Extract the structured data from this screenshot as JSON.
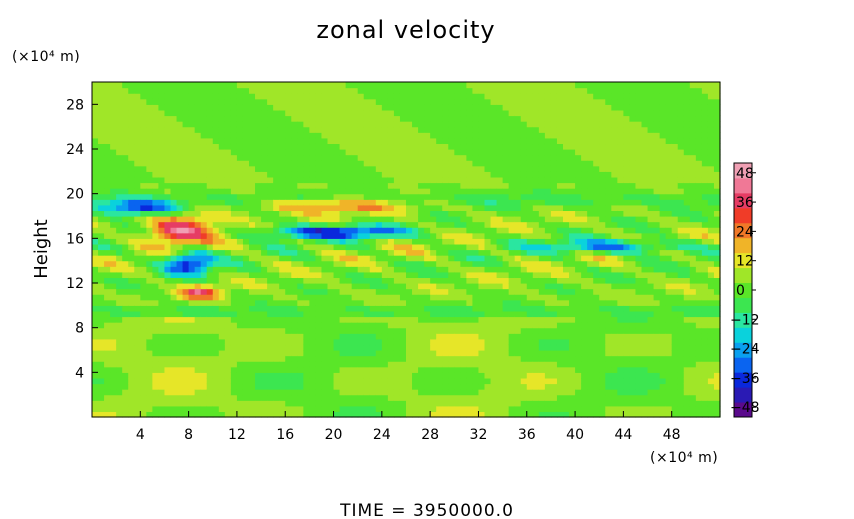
{
  "chart_data": {
    "type": "heatmap",
    "title": "zonal velocity",
    "ylabel": "Height",
    "xunit": "(×10⁴ m)",
    "yunit": "(×10⁴ m)",
    "xticks": [
      4,
      8,
      12,
      16,
      20,
      24,
      28,
      32,
      36,
      40,
      44,
      48
    ],
    "yticks": [
      4,
      8,
      12,
      16,
      20,
      24,
      28
    ],
    "xlim": [
      0,
      52
    ],
    "ylim": [
      0,
      30
    ],
    "colorbar": {
      "ticks": [
        48,
        36,
        24,
        12,
        0,
        -12,
        -24,
        -36,
        -48
      ],
      "range": [
        -52,
        52
      ]
    },
    "footer": "TIME  =  3950000.0",
    "colorscale": [
      "#5a0a8c",
      "#2a1ab4",
      "#0a28dc",
      "#0a64f0",
      "#0aa0f0",
      "#0ad2dc",
      "#2ae6a0",
      "#3ce650",
      "#5ae628",
      "#a0e628",
      "#e6e628",
      "#f0b428",
      "#f07828",
      "#f03c28",
      "#e63c64",
      "#f07896",
      "#f0a0b4"
    ],
    "field_features": [
      {
        "x": 4,
        "y": 18.8,
        "value": -40,
        "w": 3.5,
        "h": 0.7
      },
      {
        "x": 20,
        "y": 16.6,
        "value": -40,
        "w": 6,
        "h": 0.6
      },
      {
        "x": 43,
        "y": 15.3,
        "value": -30,
        "w": 6,
        "h": 0.6
      },
      {
        "x": 8,
        "y": 13.8,
        "value": -42,
        "w": 2,
        "h": 1
      },
      {
        "x": 7,
        "y": 16.5,
        "value": 30,
        "w": 2.5,
        "h": 1
      },
      {
        "x": 9,
        "y": 11.2,
        "value": 32,
        "w": 1.5,
        "h": 0.6
      },
      {
        "x": 20,
        "y": 19,
        "value": 22,
        "w": 7,
        "h": 0.7
      },
      {
        "x": 8,
        "y": 17.5,
        "value": 20,
        "w": 3,
        "h": 1.2
      }
    ]
  }
}
